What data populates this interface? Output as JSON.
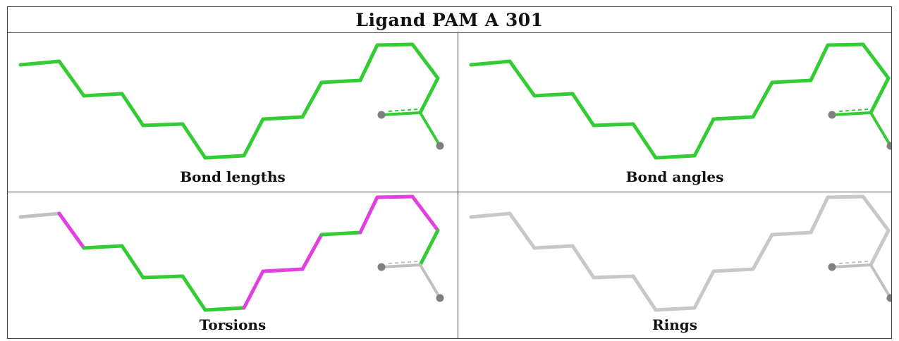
{
  "title": "Ligand PAM A 301",
  "panels": [
    {
      "caption": "Bond lengths",
      "chain_color": "#33cc33",
      "torsion_highlight": false,
      "rings_grey": false
    },
    {
      "caption": "Bond angles",
      "chain_color": "#33cc33",
      "torsion_highlight": false,
      "rings_grey": false
    },
    {
      "caption": "Torsions",
      "chain_color": "#33cc33",
      "highlight_color": "#e040e0",
      "torsion_highlight": true,
      "rings_grey": false
    },
    {
      "caption": "Rings",
      "chain_color": "#c8c8c8",
      "torsion_highlight": false,
      "rings_grey": true
    }
  ],
  "atom_color": "#808080",
  "grey_bond_color": "#c0c0c0"
}
